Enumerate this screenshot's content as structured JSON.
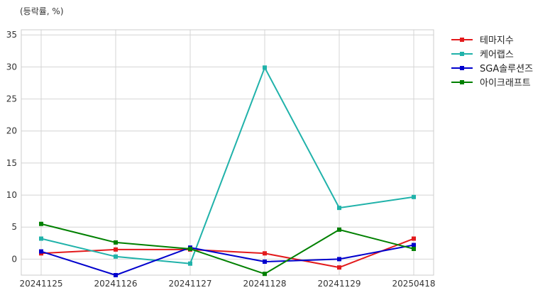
{
  "chart_data": {
    "type": "line",
    "title": "",
    "unit_label": "(등락률, %)",
    "xlabel": "",
    "ylabel": "",
    "categories": [
      "20241125",
      "20241126",
      "20241127",
      "20241128",
      "20241129",
      "20250418"
    ],
    "ylim": [
      -2.5,
      35.8
    ],
    "yticks": [
      0,
      5,
      10,
      15,
      20,
      25,
      30,
      35
    ],
    "grid": true,
    "legend_position": "right-top, outside plot",
    "series": [
      {
        "name": "테마지수",
        "color": "#e31a1c",
        "marker": "square",
        "values": [
          0.9,
          1.5,
          1.5,
          0.9,
          -1.3,
          3.2
        ]
      },
      {
        "name": "케어랩스",
        "color": "#20b2aa",
        "marker": "square",
        "values": [
          3.2,
          0.4,
          -0.7,
          29.9,
          8.0,
          9.7
        ]
      },
      {
        "name": "SGA솔루션즈",
        "color": "#0000cd",
        "marker": "square",
        "values": [
          1.2,
          -2.5,
          1.8,
          -0.4,
          0.0,
          2.2
        ]
      },
      {
        "name": "아이크래프트",
        "color": "#008000",
        "marker": "square",
        "values": [
          5.5,
          2.6,
          1.6,
          -2.3,
          4.6,
          1.6
        ]
      }
    ]
  }
}
